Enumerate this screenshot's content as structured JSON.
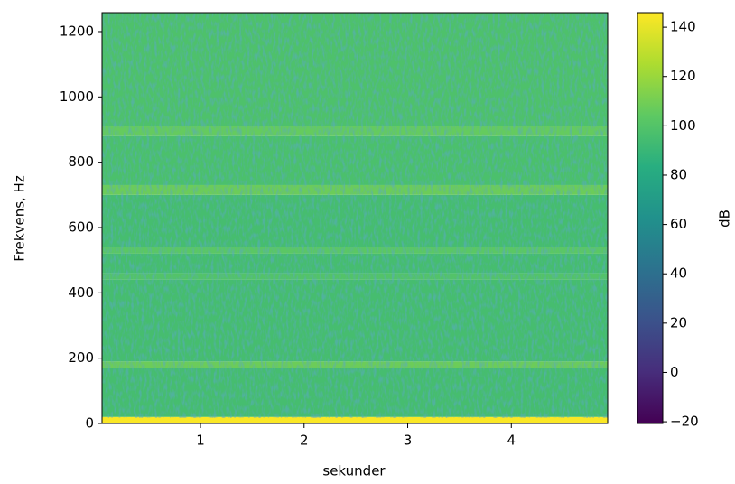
{
  "chart_data": {
    "type": "spectrogram",
    "xlabel": "sekunder",
    "ylabel": "Frekvens, Hz",
    "colorbar_label": "dB",
    "xlim": [
      0.05,
      4.93
    ],
    "xticks": [
      1,
      2,
      3,
      4
    ],
    "ylim": [
      0,
      1258
    ],
    "yticks": [
      0,
      200,
      400,
      600,
      800,
      1000,
      1200
    ],
    "clim": [
      -20.7,
      145.9
    ],
    "cticks": [
      {
        "value": -20,
        "label": "−20"
      },
      0,
      20,
      40,
      60,
      80,
      100,
      120,
      140
    ],
    "colormap": "viridis",
    "frequency_bins": [
      0,
      20,
      170,
      190,
      440,
      460,
      520,
      540,
      700,
      730,
      880,
      910,
      1258
    ],
    "levels": [
      145,
      95,
      108,
      95,
      100,
      95,
      103,
      95,
      108,
      97,
      106,
      98
    ]
  }
}
